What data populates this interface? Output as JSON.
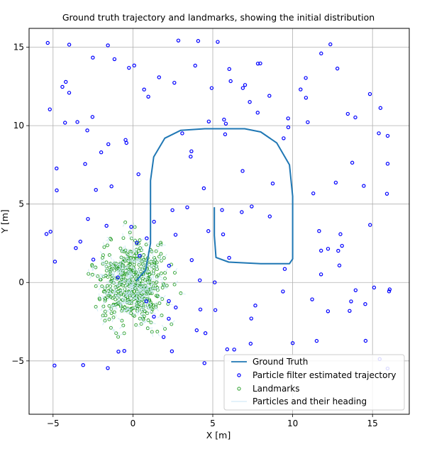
{
  "chart_data": {
    "type": "scatter",
    "title": "Ground truth trajectory and landmarks, showing the initial distribution",
    "xlabel": "X [m]",
    "ylabel": "Y [m]",
    "xlim": [
      -6.5,
      17.3
    ],
    "ylim": [
      -8.4,
      16.2
    ],
    "xticks": [
      -5,
      0,
      5,
      10,
      15
    ],
    "yticks": [
      -5,
      0,
      5,
      10,
      15
    ],
    "xtick_labels": [
      "−5",
      "0",
      "5",
      "10",
      "15"
    ],
    "ytick_labels": [
      "−5",
      "0",
      "5",
      "10",
      "15"
    ],
    "grid": true,
    "legend_position": "lower-right",
    "series": [
      {
        "name": "Ground Truth",
        "kind": "line",
        "color": "#1f77b4",
        "x": [
          0.2,
          0.8,
          1.1,
          1.1,
          1.3,
          2.0,
          3.0,
          4.5,
          6.0,
          7.0,
          8.0,
          9.0,
          9.8,
          10.0,
          10.0,
          9.8,
          8.0,
          6.0,
          5.2,
          5.1,
          5.1
        ],
        "y": [
          0.1,
          0.8,
          2.5,
          6.5,
          8.0,
          9.2,
          9.7,
          9.8,
          9.8,
          9.8,
          9.6,
          8.9,
          7.5,
          5.5,
          1.5,
          1.2,
          1.2,
          1.3,
          1.6,
          3.0,
          4.8
        ]
      },
      {
        "name": "Particle filter estimated trajectory",
        "kind": "points",
        "color": "#0000ff",
        "count": 150,
        "seed": 7,
        "x_range": [
          -5.5,
          16.5
        ],
        "y_range": [
          -5.5,
          15.5
        ]
      },
      {
        "name": "Landmarks",
        "kind": "points",
        "color": "#2ca02c",
        "count": 500,
        "seed": 3,
        "center": [
          0,
          0
        ],
        "spread": [
          1.8,
          2.3
        ]
      },
      {
        "name": "Particles and their heading",
        "kind": "segments",
        "color": "#c8e6f5"
      }
    ]
  }
}
